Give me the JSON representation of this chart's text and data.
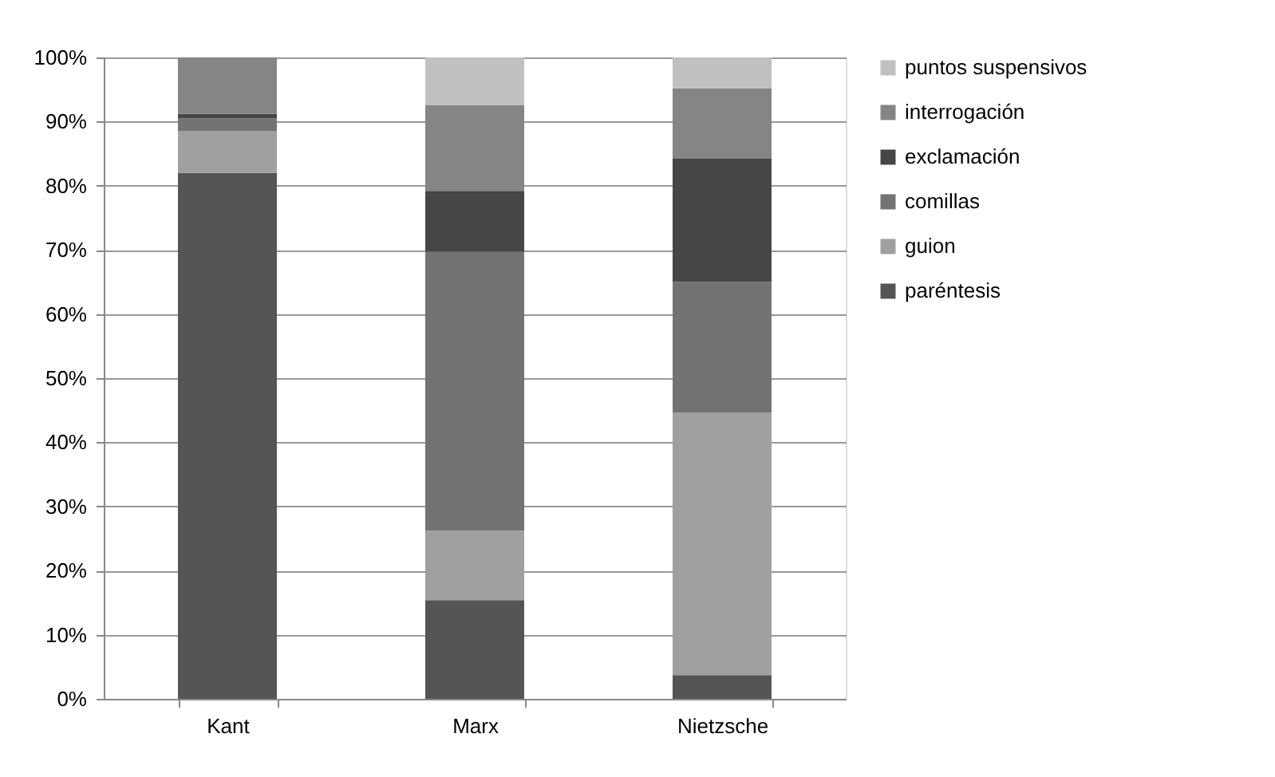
{
  "chart_data": {
    "type": "bar",
    "stacked": true,
    "categories": [
      "Kant",
      "Marx",
      "Nietzsche"
    ],
    "series": [
      {
        "name": "paréntesis",
        "color": "#555555",
        "values": [
          82,
          15.4,
          3.7
        ]
      },
      {
        "name": "guion",
        "color": "#a0a0a0",
        "values": [
          6.5,
          10.8,
          40.9
        ]
      },
      {
        "name": "comillas",
        "color": "#737373",
        "values": [
          2,
          43.5,
          20.4
        ]
      },
      {
        "name": "exclamación",
        "color": "#464646",
        "values": [
          0.7,
          9.5,
          19.2
        ]
      },
      {
        "name": "interrogación",
        "color": "#858585",
        "values": [
          8.8,
          13.4,
          11.0
        ]
      },
      {
        "name": "puntos suspensivos",
        "color": "#c0c0c0",
        "values": [
          0,
          7.4,
          4.8
        ]
      }
    ],
    "ylim": [
      0,
      100
    ],
    "yticks": [
      {
        "value": 0,
        "label": "0%"
      },
      {
        "value": 10,
        "label": "10%"
      },
      {
        "value": 20,
        "label": "20%"
      },
      {
        "value": 30,
        "label": "30%"
      },
      {
        "value": 40,
        "label": "40%"
      },
      {
        "value": 50,
        "label": "50%"
      },
      {
        "value": 60,
        "label": "60%"
      },
      {
        "value": 70,
        "label": "70%"
      },
      {
        "value": 80,
        "label": "80%"
      },
      {
        "value": 90,
        "label": "90%"
      },
      {
        "value": 100,
        "label": "100%"
      }
    ],
    "grid": "y",
    "legend": "right"
  }
}
